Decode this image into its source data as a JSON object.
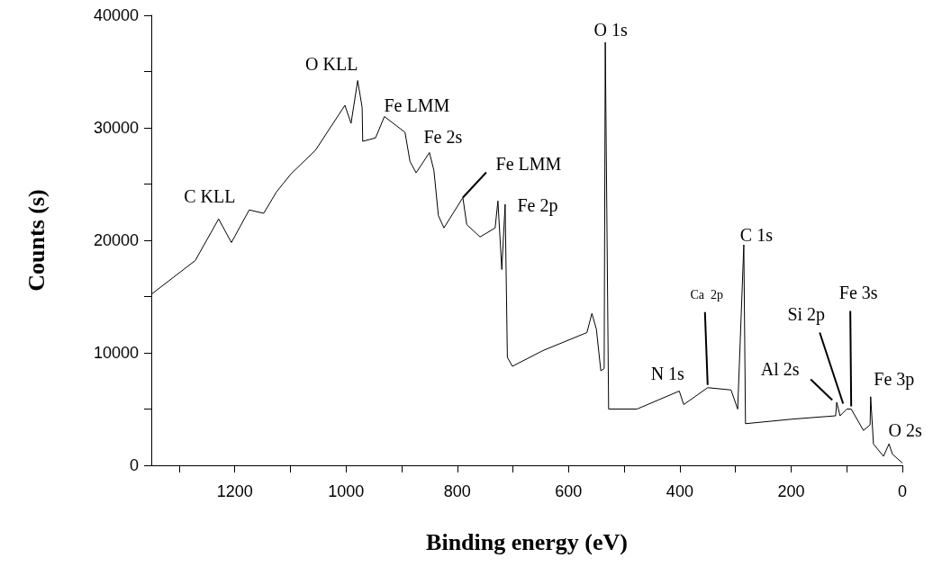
{
  "chart_data": {
    "type": "line",
    "xlabel": "Binding energy (eV)",
    "ylabel": "Counts (s)",
    "x": [
      1350,
      1271,
      1229,
      1206,
      1174,
      1148,
      1125,
      1099,
      1055,
      1002,
      991,
      979,
      971,
      970,
      947,
      931,
      894,
      885,
      874,
      850,
      842,
      834,
      824,
      790,
      783,
      759,
      732,
      727,
      720,
      714,
      710,
      701,
      646,
      567,
      558,
      550,
      542,
      536,
      534,
      528,
      477,
      401,
      393,
      350,
      308,
      296,
      285,
      282,
      199,
      120,
      118,
      112,
      100,
      92,
      70,
      58,
      57,
      52,
      34,
      24,
      18,
      0
    ],
    "series": [
      {
        "color": "#000000",
        "values": [
          15200,
          18200,
          21900,
          19800,
          22700,
          22400,
          24300,
          25900,
          28000,
          32000,
          30400,
          34200,
          31800,
          28800,
          29100,
          31000,
          29600,
          27000,
          26000,
          27800,
          26200,
          22200,
          21100,
          23800,
          21400,
          20300,
          21100,
          23500,
          17400,
          23200,
          9600,
          8800,
          10200,
          11800,
          13500,
          12100,
          8400,
          8600,
          37600,
          5000,
          5000,
          6600,
          5400,
          6900,
          6700,
          5000,
          19600,
          3700,
          4100,
          4400,
          5600,
          4400,
          5000,
          5000,
          3100,
          3600,
          6100,
          1900,
          800,
          1900,
          1000,
          200
        ]
      }
    ],
    "xlim": [
      1350,
      0
    ],
    "xticks": [
      {
        "value": 1300,
        "label": null
      },
      1200,
      {
        "value": 1100,
        "label": null
      },
      1000,
      {
        "value": 900,
        "label": null
      },
      800,
      {
        "value": 700,
        "label": null
      },
      600,
      {
        "value": 500,
        "label": null
      },
      400,
      {
        "value": 300,
        "label": null
      },
      200,
      {
        "value": 100,
        "label": null
      },
      0
    ],
    "ylim": [
      0,
      40000
    ],
    "yticks": [
      0,
      {
        "value": 5000,
        "label": null
      },
      10000,
      {
        "value": 15000,
        "label": null
      },
      20000,
      {
        "value": 25000,
        "label": null
      },
      30000,
      {
        "value": 35000,
        "label": null
      },
      40000
    ],
    "grid": false,
    "marker": "none",
    "line_style": "solid",
    "annotations": [
      {
        "text": "C KLL",
        "x": 1229,
        "y": 21900
      },
      {
        "text": "O KLL",
        "x": 979,
        "y": 34200
      },
      {
        "text": "Fe LMM",
        "x": 931,
        "y": 31000
      },
      {
        "text": "Fe 2s",
        "x": 850,
        "y": 27800
      },
      {
        "text": "Fe LMM",
        "x": 790,
        "y": 23800
      },
      {
        "text": "Fe 2p",
        "x": 714,
        "y": 23200
      },
      {
        "text": "O 1s",
        "x": 534,
        "y": 37600
      },
      {
        "text": "C 1s",
        "x": 285,
        "y": 19600
      },
      {
        "text": "Ca  2p",
        "x": 350,
        "y": 6900
      },
      {
        "text": "N 1s",
        "x": 401,
        "y": 6600
      },
      {
        "text": "Al 2s",
        "x": 126,
        "y": 5800
      },
      {
        "text": "Si 2p",
        "x": 100,
        "y": 5000
      },
      {
        "text": "Fe 3s",
        "x": 92,
        "y": 5000
      },
      {
        "text": "Fe 3p",
        "x": 57,
        "y": 6100
      },
      {
        "text": "O 2s",
        "x": 24,
        "y": 1900
      }
    ]
  }
}
